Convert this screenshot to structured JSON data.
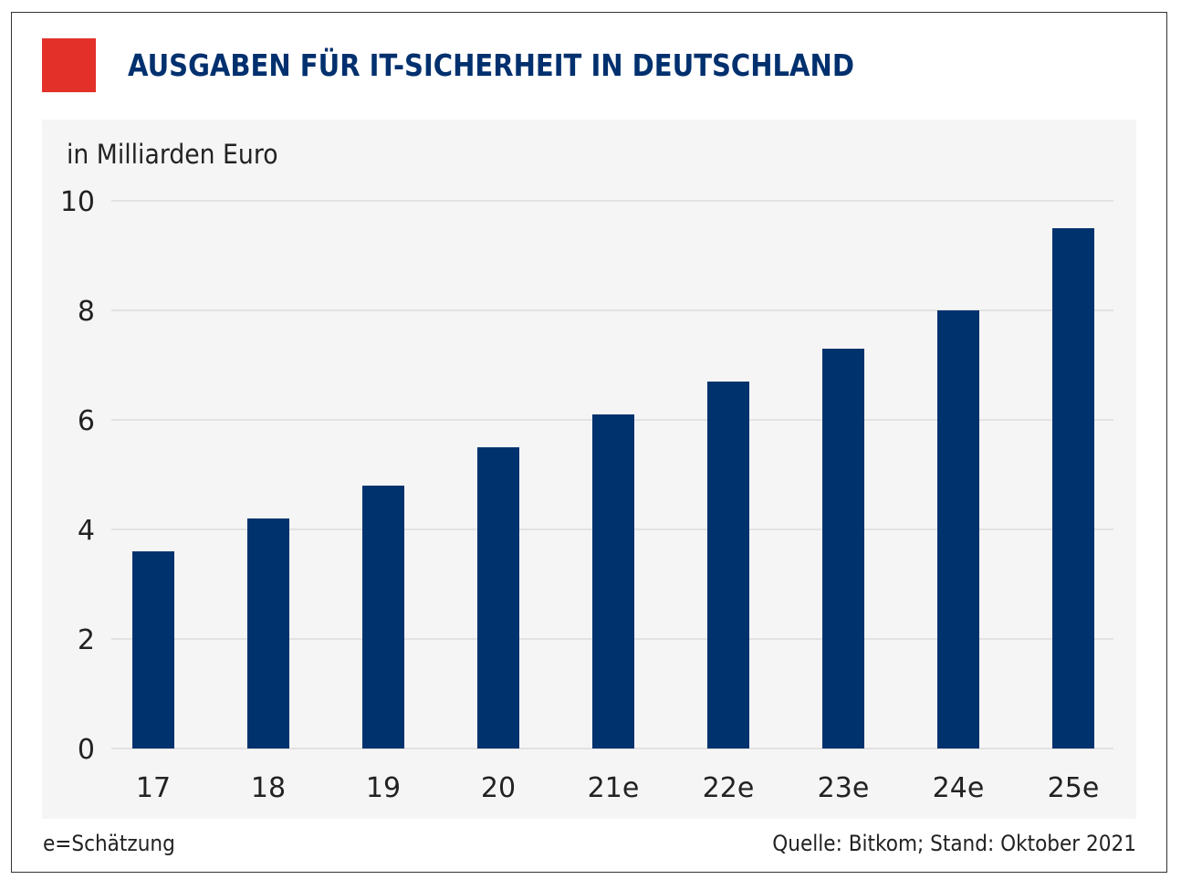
{
  "colors": {
    "accent": "#e3312a",
    "title": "#00306e",
    "bar": "#00326e",
    "panel": "#f5f5f5",
    "grid": "#d0d0d0"
  },
  "footer": {
    "note": "e=Schätzung",
    "source": "Quelle: Bitkom; Stand: Oktober 2021"
  },
  "chart_data": {
    "type": "bar",
    "title": "AUSGABEN FÜR IT-SICHERHEIT IN DEUTSCHLAND",
    "ylabel": "in Milliarden Euro",
    "xlabel": "",
    "categories": [
      "17",
      "18",
      "19",
      "20",
      "21e",
      "22e",
      "23e",
      "24e",
      "25e"
    ],
    "values": [
      3.6,
      4.2,
      4.8,
      5.5,
      6.1,
      6.7,
      7.3,
      8.0,
      9.5
    ],
    "ylim": [
      0,
      10
    ],
    "yticks": [
      "0",
      "2",
      "4",
      "6",
      "8",
      "10"
    ],
    "grid": true
  }
}
